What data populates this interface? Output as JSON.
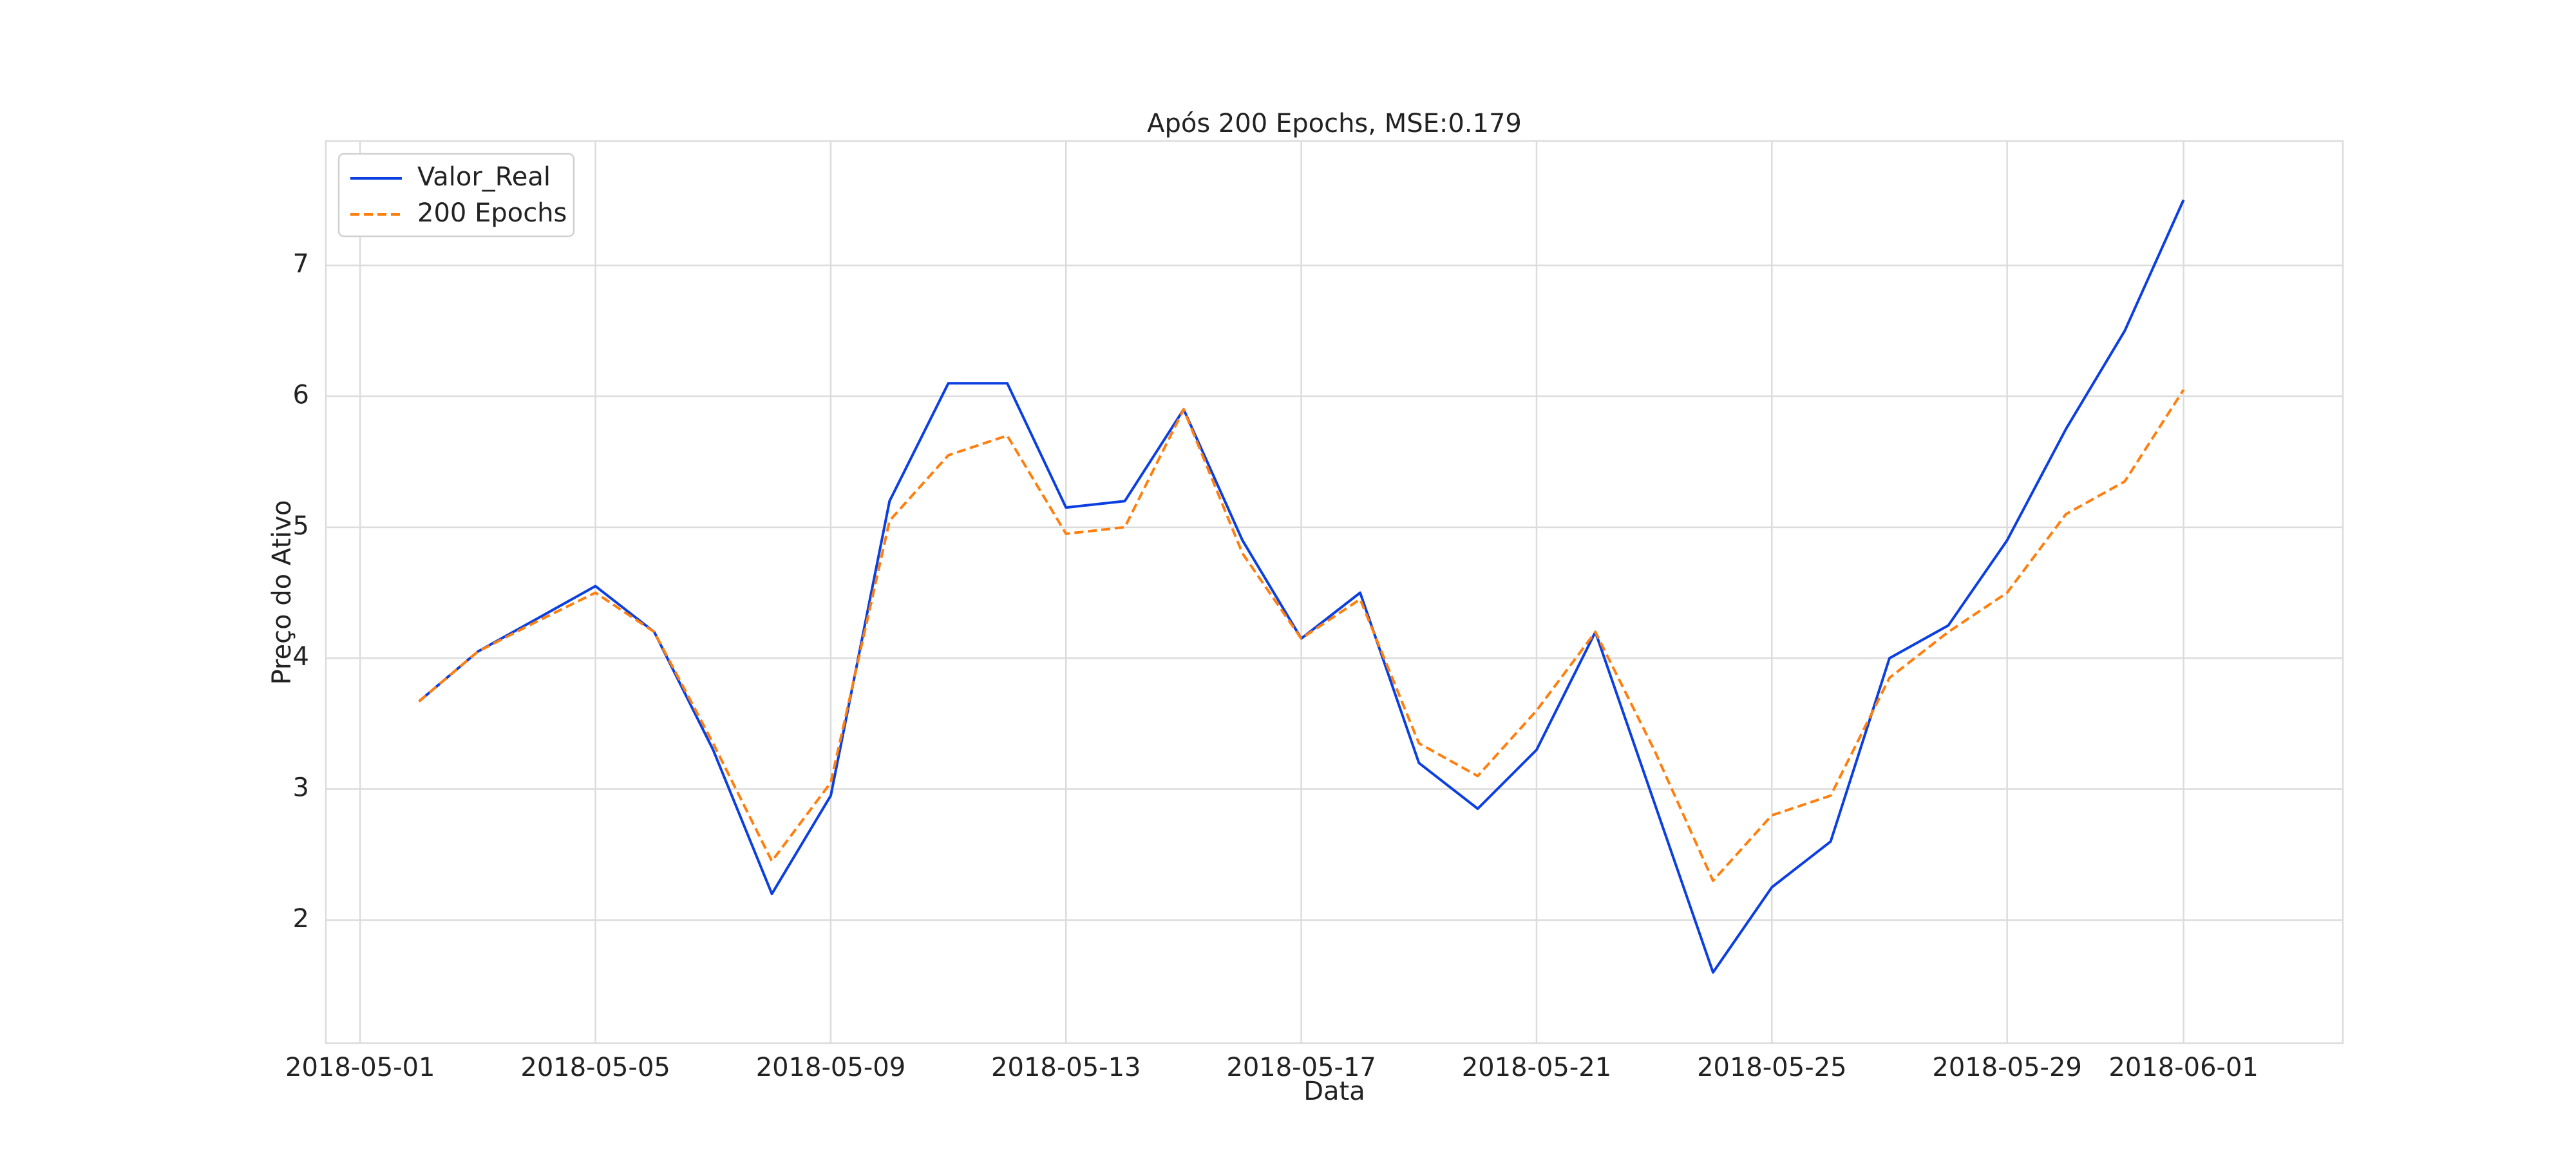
{
  "chart_data": {
    "type": "line",
    "title": "Após 200 Epochs,  MSE:0.179",
    "x_label": "Data",
    "y_label": "Preço do Ativo",
    "x": [
      "2018-05-02",
      "2018-05-03",
      "2018-05-04",
      "2018-05-05",
      "2018-05-06",
      "2018-05-07",
      "2018-05-08",
      "2018-05-09",
      "2018-05-10",
      "2018-05-11",
      "2018-05-12",
      "2018-05-13",
      "2018-05-14",
      "2018-05-15",
      "2018-05-16",
      "2018-05-17",
      "2018-05-18",
      "2018-05-19",
      "2018-05-20",
      "2018-05-21",
      "2018-05-22",
      "2018-05-23",
      "2018-05-24",
      "2018-05-25",
      "2018-05-26",
      "2018-05-27",
      "2018-05-28",
      "2018-05-29",
      "2018-05-30",
      "2018-05-31",
      "2018-06-01"
    ],
    "series": [
      {
        "name": "Valor_Real",
        "color": "#0b3fe0",
        "linestyle": "solid",
        "values": [
          3.67,
          4.05,
          4.3,
          4.55,
          4.2,
          3.3,
          2.2,
          2.95,
          5.2,
          6.1,
          6.1,
          5.15,
          5.2,
          5.9,
          4.9,
          4.15,
          4.5,
          3.2,
          2.85,
          3.3,
          4.2,
          2.9,
          1.6,
          2.25,
          2.6,
          4.0,
          4.25,
          4.9,
          5.75,
          6.5,
          7.5
        ]
      },
      {
        "name": "200 Epochs",
        "color": "#ff7f0e",
        "linestyle": "dashed",
        "values": [
          3.67,
          4.05,
          4.28,
          4.5,
          4.2,
          3.35,
          2.45,
          3.05,
          5.05,
          5.55,
          5.7,
          4.95,
          5.0,
          5.9,
          4.8,
          4.15,
          4.45,
          3.35,
          3.1,
          3.6,
          4.2,
          3.3,
          2.3,
          2.8,
          2.95,
          3.85,
          4.2,
          4.5,
          5.1,
          5.35,
          6.05
        ]
      }
    ],
    "xlim": [
      "2018-04-30T10:00:00Z",
      "2018-06-03T17:00:00Z"
    ],
    "xticks": [
      "2018-05-01",
      "2018-05-05",
      "2018-05-09",
      "2018-05-13",
      "2018-05-17",
      "2018-05-21",
      "2018-05-25",
      "2018-05-29",
      "2018-06-01"
    ],
    "ylim": [
      1.06,
      7.95
    ],
    "yticks": [
      2,
      3,
      4,
      5,
      6,
      7
    ],
    "grid": true,
    "legend": "upper left"
  }
}
